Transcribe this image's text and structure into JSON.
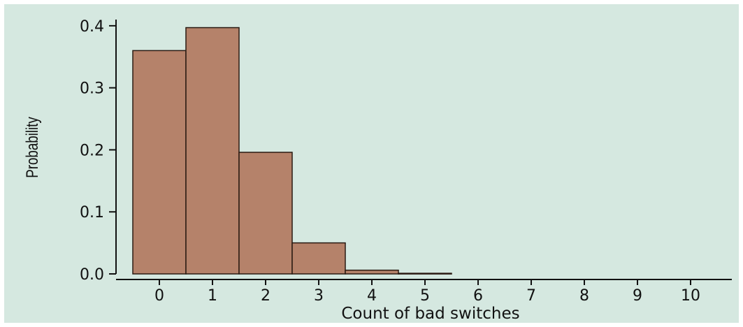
{
  "chart_data": {
    "type": "bar",
    "title": "",
    "xlabel": "Count of bad switches",
    "ylabel": "Probability",
    "categories": [
      "0",
      "1",
      "2",
      "3",
      "4",
      "5",
      "6",
      "7",
      "8",
      "9",
      "10"
    ],
    "values": [
      0.36,
      0.397,
      0.196,
      0.05,
      0.006,
      0.001,
      0,
      0,
      0,
      0,
      0
    ],
    "ylim": [
      0,
      0.41
    ],
    "yticks": [
      "0.0",
      "0.1",
      "0.2",
      "0.3",
      "0.4"
    ],
    "ytick_values": [
      0,
      0.1,
      0.2,
      0.3,
      0.4
    ],
    "grid": false,
    "colors": {
      "bar_fill": "#b5826a",
      "bar_stroke": "#2a1a12",
      "plot_bg": "#d5e8e0"
    }
  }
}
